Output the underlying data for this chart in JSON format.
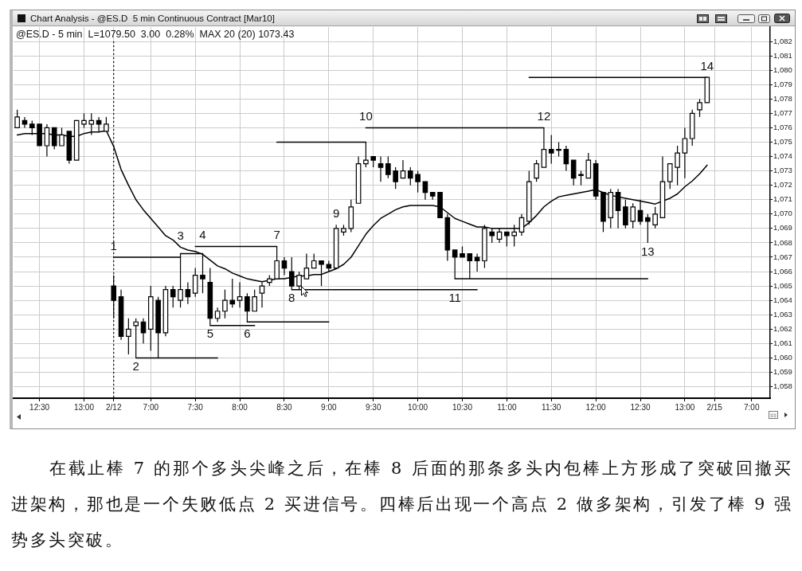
{
  "chart_data": {
    "type": "candlestick",
    "title": "Chart Analysis - @ES.D  5 min Continuous Contract [Mar10]",
    "subtitle": "@ES.D - 5 min  L=1079.50  3.00  0.28%  MAX 20 (20) 1073.43",
    "categories": [
      null,
      null,
      null,
      "12:30",
      null,
      null,
      null,
      null,
      null,
      "13:00",
      null,
      null,
      null,
      "2/12",
      null,
      null,
      null,
      null,
      "7:00",
      null,
      null,
      null,
      null,
      null,
      "7:30",
      null,
      null,
      null,
      null,
      null,
      "8:00",
      null,
      null,
      null,
      null,
      null,
      "8:30",
      null,
      null,
      null,
      null,
      null,
      "9:00",
      null,
      null,
      null,
      null,
      null,
      "9:30",
      null,
      null,
      null,
      null,
      null,
      "10:00",
      null,
      null,
      null,
      null,
      null,
      "10:30",
      null,
      null,
      null,
      null,
      null,
      "11:00",
      null,
      null,
      null,
      null,
      null,
      "11:30",
      null,
      null,
      null,
      null,
      null,
      "12:00",
      null,
      null,
      null,
      null,
      null,
      "12:30",
      null,
      null,
      null,
      null,
      null,
      "13:00",
      null,
      null,
      null,
      "2/15",
      null,
      null,
      null,
      null,
      "7:00",
      null,
      null
    ],
    "series": [
      {
        "type": "candlestick",
        "color": "#000000",
        "colors": [
          "#ffffff",
          "#000000",
          "#000000",
          "#000000",
          "#ffffff",
          "#000000",
          "#ffffff",
          "#000000",
          "#ffffff",
          "#ffffff",
          "#ffffff",
          "#000000",
          "#ffffff",
          "#000000",
          "#000000",
          "#ffffff",
          "#ffffff",
          "#000000",
          "#ffffff",
          "#000000",
          "#ffffff",
          "#000000",
          "#ffffff",
          "#000000",
          "#ffffff",
          "#000000",
          "#000000",
          "#ffffff",
          "#ffffff",
          "#000000",
          "#ffffff",
          "#000000",
          "#ffffff",
          "#ffffff",
          "#ffffff",
          "#ffffff",
          "#000000",
          "#000000",
          "#ffffff",
          "#ffffff",
          "#ffffff",
          "#000000",
          "#000000",
          "#ffffff",
          "#ffffff",
          "#ffffff",
          "#ffffff",
          "#ffffff",
          "#000000",
          "#000000",
          "#000000",
          "#000000",
          "#ffffff",
          "#000000",
          "#000000",
          "#000000",
          "#000000",
          "#000000",
          "#000000",
          "#000000",
          "#000000",
          "#000000",
          "#000000",
          "#ffffff",
          "#000000",
          "#ffffff",
          "#000000",
          "#ffffff",
          "#ffffff",
          "#ffffff",
          "#ffffff",
          "#ffffff",
          "#000000",
          "#000000",
          "#000000",
          "#000000",
          "#000000",
          "#ffffff",
          "#000000",
          "#000000",
          "#ffffff",
          "#000000",
          "#000000",
          "#ffffff",
          "#000000",
          "#000000",
          "#ffffff",
          "#ffffff",
          "#ffffff",
          "#ffffff",
          "#ffffff",
          "#ffffff",
          "#ffffff",
          "#ffffff",
          null,
          null,
          null,
          null,
          null,
          null,
          null,
          null
        ],
        "ohlc": [
          [
            1076,
            1077.25,
            1076,
            1076.75
          ],
          [
            1076.5,
            1076.75,
            1076,
            1076.25
          ],
          [
            1076.25,
            1076.5,
            1075.5,
            1076
          ],
          [
            1076.25,
            1076.25,
            1074.75,
            1074.75
          ],
          [
            1074.75,
            1076.25,
            1074,
            1076
          ],
          [
            1076,
            1076,
            1074.5,
            1074.75
          ],
          [
            1074.75,
            1076,
            1074.75,
            1075.5
          ],
          [
            1075.75,
            1075.75,
            1073.5,
            1073.75
          ],
          [
            1073.75,
            1076.5,
            1073.75,
            1076.5
          ],
          [
            1076.25,
            1077,
            1076,
            1076.5
          ],
          [
            1076.25,
            1077,
            1075.5,
            1076.5
          ],
          [
            1076.5,
            1076.75,
            1075.75,
            1076.25
          ],
          [
            1075.75,
            1076.75,
            1075.75,
            1076.25
          ],
          [
            1065,
            1065.75,
            1062.75,
            1064
          ],
          [
            1064.25,
            1064.75,
            1061.25,
            1061.5
          ],
          [
            1061.5,
            1062.75,
            1060.25,
            1062
          ],
          [
            1062.25,
            1062.75,
            1060,
            1062.5
          ],
          [
            1062.5,
            1062.75,
            1061,
            1061.75
          ],
          [
            1062,
            1065,
            1060.5,
            1064.25
          ],
          [
            1064,
            1064.25,
            1060,
            1061.75
          ],
          [
            1061.75,
            1065,
            1061.5,
            1064.75
          ],
          [
            1064.75,
            1065,
            1063.5,
            1064.25
          ],
          [
            1064,
            1067.25,
            1063.5,
            1064.75
          ],
          [
            1064.75,
            1065.25,
            1063.75,
            1064.25
          ],
          [
            1064.5,
            1066.25,
            1064.25,
            1065.75
          ],
          [
            1065.75,
            1067.25,
            1064.5,
            1065.5
          ],
          [
            1065.25,
            1066.25,
            1062.25,
            1062.75
          ],
          [
            1062.75,
            1063.5,
            1062.5,
            1063.25
          ],
          [
            1063.25,
            1064.75,
            1062.75,
            1064
          ],
          [
            1064,
            1065.5,
            1063.5,
            1063.75
          ],
          [
            1064,
            1065.25,
            1063.5,
            1064.25
          ],
          [
            1064.25,
            1064.5,
            1062.5,
            1063.25
          ],
          [
            1063.25,
            1064.75,
            1063.25,
            1064.25
          ],
          [
            1064.5,
            1065.25,
            1063.5,
            1065
          ],
          [
            1065.25,
            1065.75,
            1065,
            1065.5
          ],
          [
            1065.5,
            1067.75,
            1065.5,
            1066.75
          ],
          [
            1066.75,
            1067,
            1065.75,
            1066.25
          ],
          [
            1066,
            1067,
            1064.75,
            1065
          ],
          [
            1065,
            1066,
            1064.75,
            1065.75
          ],
          [
            1065.5,
            1067.25,
            1065.5,
            1066.25
          ],
          [
            1066.25,
            1067.25,
            1066.25,
            1066.75
          ],
          [
            1066.75,
            1066.75,
            1065,
            1066.5
          ],
          [
            1066.5,
            1066.75,
            1066,
            1066.25
          ],
          [
            1066.25,
            1069.25,
            1066.25,
            1069
          ],
          [
            1068.75,
            1069.25,
            1068.5,
            1069
          ],
          [
            1069,
            1071,
            1068.75,
            1070.5
          ],
          [
            1070.75,
            1074,
            1070.75,
            1073.5
          ],
          [
            1073.5,
            1075,
            1073.25,
            1073.75
          ],
          [
            1074,
            1074,
            1073.25,
            1073.75
          ],
          [
            1073.5,
            1074,
            1072.25,
            1073.25
          ],
          [
            1073.5,
            1074,
            1072.5,
            1072.75
          ],
          [
            1073,
            1073.25,
            1071.75,
            1072.25
          ],
          [
            1072.5,
            1073.75,
            1072.5,
            1073
          ],
          [
            1073,
            1073.25,
            1072,
            1072.5
          ],
          [
            1072.75,
            1073,
            1071.5,
            1072.25
          ],
          [
            1072.25,
            1072.25,
            1071,
            1071.5
          ],
          [
            1071.5,
            1071.5,
            1071,
            1071.25
          ],
          [
            1071.5,
            1071.5,
            1069.75,
            1069.75
          ],
          [
            1069.75,
            1070,
            1066.75,
            1067.5
          ],
          [
            1067.5,
            1067.5,
            1065.5,
            1067
          ],
          [
            1067.25,
            1067.75,
            1067,
            1067
          ],
          [
            1067.25,
            1067.25,
            1065.5,
            1066.75
          ],
          [
            1067,
            1067.25,
            1066,
            1066.75
          ],
          [
            1066.75,
            1069.25,
            1066.25,
            1069
          ],
          [
            1068.75,
            1069,
            1068,
            1068.5
          ],
          [
            1068.25,
            1069,
            1068,
            1068.75
          ],
          [
            1068.75,
            1068.75,
            1067.75,
            1068.5
          ],
          [
            1068.5,
            1069.25,
            1067.75,
            1068.75
          ],
          [
            1068.75,
            1070,
            1068.5,
            1069.75
          ],
          [
            1069.5,
            1073,
            1069.25,
            1072.25
          ],
          [
            1072.5,
            1073.75,
            1072.25,
            1073.5
          ],
          [
            1073.25,
            1076,
            1073.25,
            1074.5
          ],
          [
            1074.5,
            1075.5,
            1073.5,
            1074.25
          ],
          [
            1074.5,
            1075,
            1074,
            1074.5
          ],
          [
            1074.5,
            1074.75,
            1073,
            1073.5
          ],
          [
            1073.75,
            1073.75,
            1072,
            1072.5
          ],
          [
            1072.75,
            1073,
            1072,
            1072.75
          ],
          [
            1072.5,
            1074.25,
            1072.5,
            1073.75
          ],
          [
            1073.5,
            1073.75,
            1071,
            1071.25
          ],
          [
            1071.5,
            1071.5,
            1068.75,
            1069.5
          ],
          [
            1069.75,
            1071.75,
            1069,
            1071.5
          ],
          [
            1071.5,
            1071.75,
            1069,
            1070.25
          ],
          [
            1070.5,
            1071,
            1069,
            1069.25
          ],
          [
            1069.5,
            1070.75,
            1069,
            1070.5
          ],
          [
            1070.25,
            1071,
            1069.25,
            1069.5
          ],
          [
            1069.75,
            1070,
            1068,
            1069.5
          ],
          [
            1069.25,
            1070.5,
            1069,
            1070
          ],
          [
            1069.75,
            1074,
            1069.75,
            1072.25
          ],
          [
            1072.25,
            1073.5,
            1071.75,
            1073.5
          ],
          [
            1073.25,
            1074.75,
            1072,
            1074.25
          ],
          [
            1074.25,
            1076,
            1072.5,
            1075.25
          ],
          [
            1075.25,
            1077.25,
            1074.75,
            1077
          ],
          [
            1077.25,
            1078,
            1076.75,
            1077.75
          ],
          [
            1077.75,
            1079.5,
            1077.75,
            1079.5
          ],
          null,
          null,
          null,
          null,
          null,
          null,
          null,
          null
        ],
        "value_labels": [
          null,
          null,
          null,
          null,
          null,
          null,
          null,
          null,
          null,
          null,
          null,
          null,
          null,
          "1",
          null,
          null,
          "2",
          null,
          null,
          null,
          null,
          null,
          "3",
          null,
          null,
          "4",
          "5",
          null,
          null,
          null,
          null,
          "6",
          null,
          null,
          null,
          "7",
          null,
          "8",
          null,
          null,
          null,
          null,
          null,
          "9",
          null,
          null,
          null,
          "10",
          null,
          null,
          null,
          null,
          null,
          null,
          null,
          null,
          null,
          null,
          null,
          "11",
          null,
          null,
          null,
          null,
          null,
          null,
          null,
          null,
          null,
          null,
          null,
          "12",
          null,
          null,
          null,
          null,
          null,
          null,
          null,
          null,
          null,
          null,
          null,
          null,
          null,
          "13",
          null,
          null,
          null,
          null,
          null,
          null,
          null,
          "14",
          null,
          null,
          null,
          null,
          null,
          null,
          null,
          null
        ]
      },
      {
        "type": "line",
        "color": "#000000",
        "values": [
          1075.5,
          1075.6,
          1075.6,
          1075.6,
          1075.6,
          1075.5,
          1075.5,
          1075.4,
          1075.4,
          1075.6,
          1075.7,
          1075.7,
          1075.8,
          1074.7,
          1073.1,
          1072.0,
          1071.0,
          1070.3,
          1069.7,
          1069.1,
          1068.5,
          1068.2,
          1067.7,
          1067.5,
          1067.4,
          1067.2,
          1066.8,
          1066.4,
          1066.2,
          1065.9,
          1065.7,
          1065.5,
          1065.4,
          1065.3,
          1065.4,
          1065.5,
          1065.5,
          1065.6,
          1065.7,
          1065.7,
          1065.8,
          1065.8,
          1066.0,
          1066.2,
          1066.5,
          1067.0,
          1067.8,
          1068.6,
          1069.2,
          1069.7,
          1070.0,
          1070.3,
          1070.5,
          1070.6,
          1070.6,
          1070.6,
          1070.6,
          1070.5,
          1070.1,
          1069.7,
          1069.5,
          1069.3,
          1069.1,
          1069.1,
          1069.0,
          1069.0,
          1069.0,
          1069.0,
          1069.0,
          1069.4,
          1069.9,
          1070.5,
          1070.9,
          1071.2,
          1071.3,
          1071.4,
          1071.5,
          1071.6,
          1071.7,
          1071.5,
          1071.3,
          1071.2,
          1071.1,
          1071.0,
          1070.9,
          1070.8,
          1070.7,
          1070.9,
          1071.1,
          1071.4,
          1071.9,
          1072.3,
          1072.8,
          1073.4,
          null,
          null,
          null,
          null,
          null,
          null,
          null,
          null
        ]
      },
      {
        "type": "line",
        "color": "#000000",
        "values": [
          null,
          null,
          null,
          null,
          null,
          null,
          null,
          null,
          null,
          null,
          null,
          null,
          null,
          1067,
          1067,
          1067,
          1067,
          1067,
          1067,
          1067,
          1067,
          1067,
          1067,
          null,
          null,
          null,
          null,
          null,
          null,
          null,
          null,
          null,
          null,
          null,
          null,
          null,
          null,
          null,
          null,
          null,
          null,
          null,
          null,
          null,
          null,
          null,
          null,
          null,
          null,
          null,
          null,
          null,
          null,
          null,
          null,
          null,
          null,
          null,
          null,
          null,
          null,
          null,
          null,
          null,
          null,
          null,
          null,
          null,
          null,
          null,
          null,
          null,
          null,
          null,
          null,
          null,
          null,
          null,
          null,
          null,
          null,
          null,
          null,
          null,
          null,
          null,
          null,
          null,
          null,
          null,
          null,
          null,
          null,
          null,
          null,
          null,
          null,
          null,
          null,
          null,
          null,
          null
        ]
      },
      {
        "type": "line",
        "color": "#000000",
        "values": [
          null,
          null,
          null,
          null,
          null,
          null,
          null,
          null,
          null,
          null,
          null,
          null,
          null,
          null,
          null,
          null,
          null,
          null,
          null,
          null,
          null,
          null,
          1067.25,
          1067.25,
          1067.25,
          1067.25,
          null,
          null,
          null,
          null,
          null,
          null,
          null,
          null,
          null,
          null,
          null,
          null,
          null,
          null,
          null,
          null,
          null,
          null,
          null,
          null,
          null,
          null,
          null,
          null,
          null,
          null,
          null,
          null,
          null,
          null,
          null,
          null,
          null,
          null,
          null,
          null,
          null,
          null,
          null,
          null,
          null,
          null,
          null,
          null,
          null,
          null,
          null,
          null,
          null,
          null,
          null,
          null,
          null,
          null,
          null,
          null,
          null,
          null,
          null,
          null,
          null,
          null,
          null,
          null,
          null,
          null,
          null,
          null,
          null,
          null,
          null,
          null,
          null,
          null,
          null,
          null
        ]
      },
      {
        "type": "line",
        "color": "#000000",
        "values": [
          null,
          null,
          null,
          null,
          null,
          null,
          null,
          null,
          null,
          null,
          null,
          null,
          null,
          null,
          null,
          null,
          null,
          null,
          null,
          null,
          null,
          null,
          null,
          null,
          1067.75,
          1067.75,
          1067.75,
          1067.75,
          1067.75,
          1067.75,
          1067.75,
          1067.75,
          1067.75,
          1067.75,
          1067.75,
          1067.75,
          null,
          null,
          null,
          null,
          null,
          null,
          null,
          null,
          null,
          null,
          null,
          null,
          null,
          null,
          null,
          null,
          null,
          null,
          null,
          null,
          null,
          null,
          null,
          null,
          null,
          null,
          null,
          null,
          null,
          null,
          null,
          null,
          null,
          null,
          null,
          null,
          null,
          null,
          null,
          null,
          null,
          null,
          null,
          null,
          null,
          null,
          null,
          null,
          null,
          null,
          null,
          null,
          null,
          null,
          null,
          null,
          null,
          null,
          null,
          null,
          null,
          null,
          null,
          null,
          null,
          null
        ]
      },
      {
        "type": "line",
        "color": "#000000",
        "values": [
          null,
          null,
          null,
          null,
          null,
          null,
          null,
          null,
          null,
          null,
          null,
          null,
          null,
          null,
          null,
          null,
          1060,
          1060,
          1060,
          1060,
          1060,
          1060,
          1060,
          1060,
          1060,
          1060,
          1060,
          1060,
          null,
          null,
          null,
          null,
          null,
          null,
          null,
          null,
          null,
          null,
          null,
          null,
          null,
          null,
          null,
          null,
          null,
          null,
          null,
          null,
          null,
          null,
          null,
          null,
          null,
          null,
          null,
          null,
          null,
          null,
          null,
          null,
          null,
          null,
          null,
          null,
          null,
          null,
          null,
          null,
          null,
          null,
          null,
          null,
          null,
          null,
          null,
          null,
          null,
          null,
          null,
          null,
          null,
          null,
          null,
          null,
          null,
          null,
          null,
          null,
          null,
          null,
          null,
          null,
          null,
          null,
          null,
          null,
          null,
          null,
          null,
          null,
          null,
          null
        ]
      },
      {
        "type": "line",
        "color": "#000000",
        "values": [
          null,
          null,
          null,
          null,
          null,
          null,
          null,
          null,
          null,
          null,
          null,
          null,
          null,
          null,
          null,
          null,
          null,
          null,
          null,
          null,
          null,
          null,
          null,
          null,
          null,
          null,
          1062.25,
          1062.25,
          1062.25,
          1062.25,
          1062.25,
          1062.25,
          1062.25,
          null,
          null,
          null,
          null,
          null,
          null,
          null,
          null,
          null,
          null,
          null,
          null,
          null,
          null,
          null,
          null,
          null,
          null,
          null,
          null,
          null,
          null,
          null,
          null,
          null,
          null,
          null,
          null,
          null,
          null,
          null,
          null,
          null,
          null,
          null,
          null,
          null,
          null,
          null,
          null,
          null,
          null,
          null,
          null,
          null,
          null,
          null,
          null,
          null,
          null,
          null,
          null,
          null,
          null,
          null,
          null,
          null,
          null,
          null,
          null,
          null,
          null,
          null,
          null,
          null,
          null,
          null,
          null,
          null
        ]
      },
      {
        "type": "line",
        "color": "#000000",
        "values": [
          null,
          null,
          null,
          null,
          null,
          null,
          null,
          null,
          null,
          null,
          null,
          null,
          null,
          null,
          null,
          null,
          null,
          null,
          null,
          null,
          null,
          null,
          null,
          null,
          null,
          null,
          null,
          null,
          null,
          null,
          null,
          1062.5,
          1062.5,
          1062.5,
          1062.5,
          1062.5,
          1062.5,
          1062.5,
          1062.5,
          1062.5,
          1062.5,
          1062.5,
          1062.5,
          null,
          null,
          null,
          null,
          null,
          null,
          null,
          null,
          null,
          null,
          null,
          null,
          null,
          null,
          null,
          null,
          null,
          null,
          null,
          null,
          null,
          null,
          null,
          null,
          null,
          null,
          null,
          null,
          null,
          null,
          null,
          null,
          null,
          null,
          null,
          null,
          null,
          null,
          null,
          null,
          null,
          null,
          null,
          null,
          null,
          null,
          null,
          null,
          null,
          null,
          null,
          null,
          null,
          null,
          null,
          null,
          null,
          null,
          null
        ]
      },
      {
        "type": "line",
        "color": "#000000",
        "values": [
          null,
          null,
          null,
          null,
          null,
          null,
          null,
          null,
          null,
          null,
          null,
          null,
          null,
          null,
          null,
          null,
          null,
          null,
          null,
          null,
          null,
          null,
          null,
          null,
          null,
          null,
          null,
          null,
          null,
          null,
          null,
          null,
          null,
          null,
          null,
          1075,
          1075,
          1075,
          1075,
          1075,
          1075,
          1075,
          1075,
          1075,
          1075,
          1075,
          1075,
          1075,
          null,
          null,
          null,
          null,
          null,
          null,
          null,
          null,
          null,
          null,
          null,
          null,
          null,
          null,
          null,
          null,
          null,
          null,
          null,
          null,
          null,
          null,
          null,
          null,
          null,
          null,
          null,
          null,
          null,
          null,
          null,
          null,
          null,
          null,
          null,
          null,
          null,
          null,
          null,
          null,
          null,
          null,
          null,
          null,
          null,
          null,
          null,
          null,
          null,
          null,
          null,
          null,
          null,
          null
        ]
      },
      {
        "type": "line",
        "color": "#000000",
        "values": [
          null,
          null,
          null,
          null,
          null,
          null,
          null,
          null,
          null,
          null,
          null,
          null,
          null,
          null,
          null,
          null,
          null,
          null,
          null,
          null,
          null,
          null,
          null,
          null,
          null,
          null,
          null,
          null,
          null,
          null,
          null,
          null,
          null,
          null,
          null,
          null,
          null,
          1064.75,
          1064.75,
          1064.75,
          1064.75,
          1064.75,
          1064.75,
          1064.75,
          1064.75,
          1064.75,
          1064.75,
          1064.75,
          1064.75,
          1064.75,
          1064.75,
          1064.75,
          1064.75,
          1064.75,
          1064.75,
          1064.75,
          1064.75,
          1064.75,
          1064.75,
          1064.75,
          1064.75,
          1064.75,
          1064.75,
          null,
          null,
          null,
          null,
          null,
          null,
          null,
          null,
          null,
          null,
          null,
          null,
          null,
          null,
          null,
          null,
          null,
          null,
          null,
          null,
          null,
          null,
          null,
          null,
          null,
          null,
          null,
          null,
          null,
          null,
          null,
          null,
          null,
          null,
          null,
          null,
          null,
          null,
          null
        ]
      },
      {
        "type": "line",
        "color": "#000000",
        "values": [
          null,
          null,
          null,
          null,
          null,
          null,
          null,
          null,
          null,
          null,
          null,
          null,
          null,
          null,
          null,
          null,
          null,
          null,
          null,
          null,
          null,
          null,
          null,
          null,
          null,
          null,
          null,
          null,
          null,
          null,
          null,
          null,
          null,
          null,
          null,
          null,
          null,
          null,
          null,
          null,
          null,
          null,
          null,
          null,
          null,
          null,
          null,
          1076,
          1076,
          1076,
          1076,
          1076,
          1076,
          1076,
          1076,
          1076,
          1076,
          1076,
          1076,
          1076,
          1076,
          1076,
          1076,
          1076,
          1076,
          1076,
          1076,
          1076,
          1076,
          1076,
          1076,
          1076,
          null,
          null,
          null,
          null,
          null,
          null,
          null,
          null,
          null,
          null,
          null,
          null,
          null,
          null,
          null,
          null,
          null,
          null,
          null,
          null,
          null,
          null,
          null,
          null,
          null,
          null,
          null,
          null,
          null,
          null
        ]
      },
      {
        "type": "line",
        "color": "#000000",
        "values": [
          null,
          null,
          null,
          null,
          null,
          null,
          null,
          null,
          null,
          null,
          null,
          null,
          null,
          null,
          null,
          null,
          null,
          null,
          null,
          null,
          null,
          null,
          null,
          null,
          null,
          null,
          null,
          null,
          null,
          null,
          null,
          null,
          null,
          null,
          null,
          null,
          null,
          null,
          null,
          null,
          null,
          null,
          null,
          null,
          null,
          null,
          null,
          null,
          null,
          null,
          null,
          null,
          null,
          null,
          null,
          null,
          null,
          null,
          null,
          1065.5,
          1065.5,
          1065.5,
          1065.5,
          1065.5,
          1065.5,
          1065.5,
          1065.5,
          1065.5,
          1065.5,
          1065.5,
          1065.5,
          1065.5,
          1065.5,
          1065.5,
          1065.5,
          1065.5,
          1065.5,
          1065.5,
          1065.5,
          1065.5,
          1065.5,
          1065.5,
          1065.5,
          1065.5,
          1065.5,
          1065.5,
          null,
          null,
          null,
          null,
          null,
          null,
          null,
          null,
          null,
          null,
          null,
          null,
          null,
          null,
          null,
          null
        ]
      },
      {
        "type": "line",
        "color": "#000000",
        "values": [
          null,
          null,
          null,
          null,
          null,
          null,
          null,
          null,
          null,
          null,
          null,
          null,
          null,
          null,
          null,
          null,
          null,
          null,
          null,
          null,
          null,
          null,
          null,
          null,
          null,
          null,
          null,
          null,
          null,
          null,
          null,
          null,
          null,
          null,
          null,
          null,
          null,
          null,
          null,
          null,
          null,
          null,
          null,
          null,
          null,
          null,
          null,
          null,
          null,
          null,
          null,
          null,
          null,
          null,
          null,
          null,
          null,
          null,
          null,
          null,
          null,
          null,
          null,
          null,
          null,
          null,
          null,
          null,
          null,
          1079.5,
          1079.5,
          1079.5,
          1079.5,
          1079.5,
          1079.5,
          1079.5,
          1079.5,
          1079.5,
          1079.5,
          1079.5,
          1079.5,
          1079.5,
          1079.5,
          1079.5,
          1079.5,
          1079.5,
          1079.5,
          1079.5,
          1079.5,
          1079.5,
          1079.5,
          1079.5,
          1079.5,
          1079.5,
          null,
          null,
          null,
          null,
          null,
          null,
          null,
          null
        ]
      }
    ],
    "ylim": [
      1057.2,
      1083.0
    ],
    "yticks": [
      {
        "value": 1058,
        "label": "1,058"
      },
      {
        "value": 1059,
        "label": "1,059"
      },
      {
        "value": 1060,
        "label": "1,060"
      },
      {
        "value": 1061,
        "label": "1,061"
      },
      {
        "value": 1062,
        "label": "1,062"
      },
      {
        "value": 1063,
        "label": "1,063"
      },
      {
        "value": 1064,
        "label": "1,064"
      },
      {
        "value": 1065,
        "label": "1,065"
      },
      {
        "value": 1066,
        "label": "1,066"
      },
      {
        "value": 1067,
        "label": "1,067"
      },
      {
        "value": 1068,
        "label": "1,068"
      },
      {
        "value": 1069,
        "label": "1,069"
      },
      {
        "value": 1070,
        "label": "1,070"
      },
      {
        "value": 1071,
        "label": "1,071"
      },
      {
        "value": 1072,
        "label": "1,072"
      },
      {
        "value": 1073,
        "label": "1,073"
      },
      {
        "value": 1074,
        "label": "1,074"
      },
      {
        "value": 1075,
        "label": "1,075"
      },
      {
        "value": 1076,
        "label": "1,076"
      },
      {
        "value": 1077,
        "label": "1,077"
      },
      {
        "value": 1078,
        "label": "1,078"
      },
      {
        "value": 1079,
        "label": "1,079"
      },
      {
        "value": 1080,
        "label": "1,080"
      },
      {
        "value": 1081,
        "label": "1,081"
      },
      {
        "value": 1082,
        "label": "1,082"
      }
    ],
    "grid": true,
    "ref_lines": [
      {
        "axis": "x",
        "value": "2/12",
        "line_style": "dotted",
        "color": "#000000"
      }
    ],
    "annotations": [
      "在截止棒 7 的那个多头尖峰之后，在棒 8 后面的那条多头内包棒上方形成了突破回撤买进架构，那也是一个失败低点 2 买进信号。四棒后出现一个高点 2 做多架构，引发了棒 9 强势多头突破。"
    ]
  }
}
